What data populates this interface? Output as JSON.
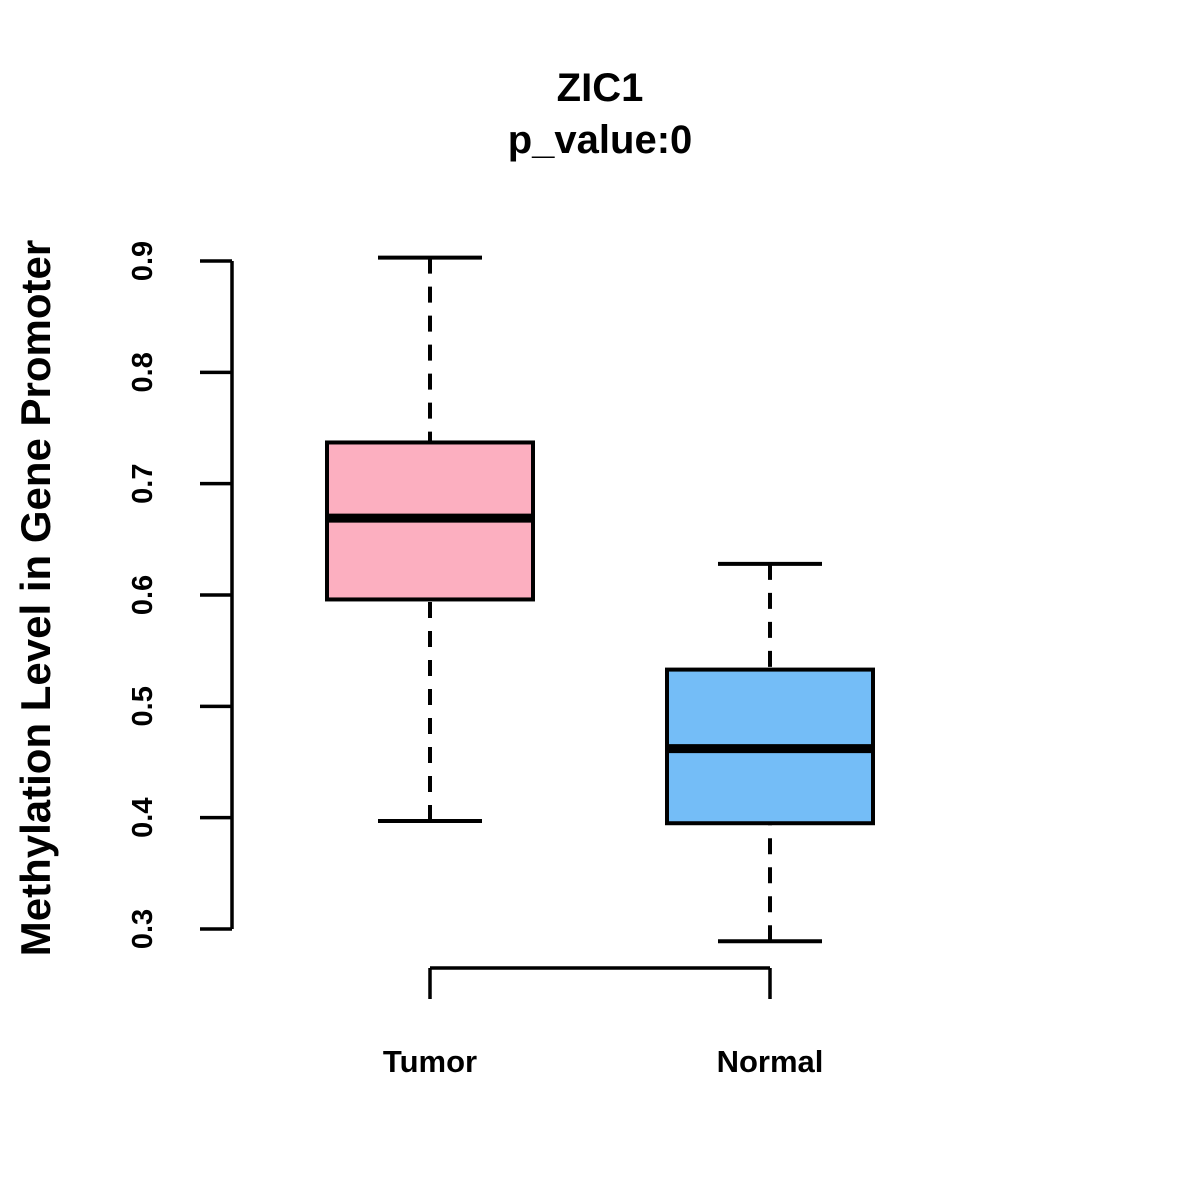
{
  "chart_data": {
    "type": "boxplot",
    "title": "ZIC1",
    "subtitle": "p_value:0",
    "ylabel": "Methylation Level in Gene Promoter",
    "xlabel": "",
    "ylim": [
      0.3,
      0.9
    ],
    "y_ticks": [
      "0.3",
      "0.4",
      "0.5",
      "0.6",
      "0.7",
      "0.8",
      "0.9"
    ],
    "categories": [
      "Tumor",
      "Normal"
    ],
    "groups": [
      {
        "label": "Tumor",
        "fill": "#FCAFC0",
        "whisker_low": 0.397,
        "q1": 0.596,
        "median": 0.669,
        "q3": 0.737,
        "whisker_high": 0.903
      },
      {
        "label": "Normal",
        "fill": "#74BDF7",
        "whisker_low": 0.289,
        "q1": 0.395,
        "median": 0.462,
        "q3": 0.533,
        "whisker_high": 0.628
      }
    ],
    "line_color": "#000000",
    "whisker_style": "dashed",
    "grid": false,
    "legend": "none"
  }
}
